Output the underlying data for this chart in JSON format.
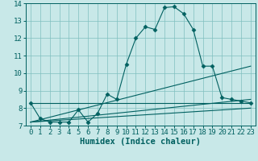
{
  "title": "",
  "xlabel": "Humidex (Indice chaleur)",
  "ylabel": "",
  "bg_color": "#c8e8e8",
  "grid_color": "#7fbfbf",
  "line_color": "#006060",
  "xlim": [
    -0.5,
    23.5
  ],
  "ylim": [
    7.0,
    14.0
  ],
  "xticks": [
    0,
    1,
    2,
    3,
    4,
    5,
    6,
    7,
    8,
    9,
    10,
    11,
    12,
    13,
    14,
    15,
    16,
    17,
    18,
    19,
    20,
    21,
    22,
    23
  ],
  "yticks": [
    7,
    8,
    9,
    10,
    11,
    12,
    13,
    14
  ],
  "series": [
    {
      "x": [
        0,
        1,
        2,
        3,
        4,
        5,
        6,
        7,
        8,
        9,
        10,
        11,
        12,
        13,
        14,
        15,
        16,
        17,
        18,
        19,
        20,
        21,
        22,
        23
      ],
      "y": [
        8.3,
        7.4,
        7.2,
        7.2,
        7.2,
        7.9,
        7.2,
        7.7,
        8.8,
        8.5,
        10.5,
        12.0,
        12.65,
        12.5,
        13.75,
        13.8,
        13.4,
        12.5,
        10.4,
        10.4,
        8.6,
        8.5,
        8.4,
        8.3
      ],
      "marker": "D",
      "markersize": 2.5
    },
    {
      "x": [
        0,
        23
      ],
      "y": [
        8.3,
        8.3
      ],
      "marker": null,
      "markersize": 0
    },
    {
      "x": [
        0,
        23
      ],
      "y": [
        7.2,
        10.4
      ],
      "marker": null,
      "markersize": 0
    },
    {
      "x": [
        0,
        23
      ],
      "y": [
        7.2,
        8.5
      ],
      "marker": null,
      "markersize": 0
    },
    {
      "x": [
        0,
        23
      ],
      "y": [
        7.2,
        8.0
      ],
      "marker": null,
      "markersize": 0
    }
  ],
  "font_family": "monospace",
  "xlabel_fontsize": 7.5,
  "tick_fontsize": 6.5
}
